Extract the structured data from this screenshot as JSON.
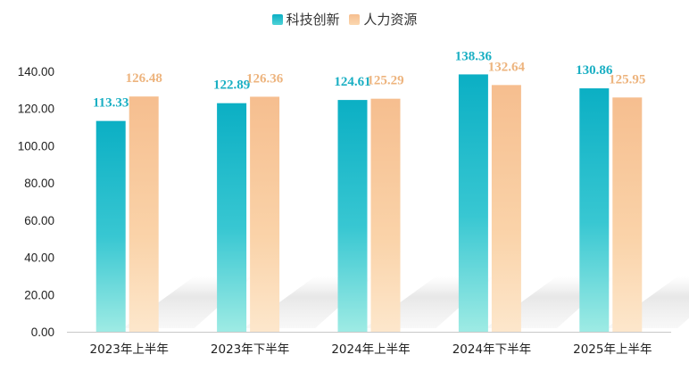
{
  "legend": [
    {
      "name": "科技创新",
      "color": "#0BAFC4"
    },
    {
      "name": "人力资源",
      "color": "#F6BE8F"
    }
  ],
  "chart_data": {
    "type": "bar",
    "categories": [
      "2023年上半年",
      "2023年下半年",
      "2024年上半年",
      "2024年下半年",
      "2025年上半年"
    ],
    "series": [
      {
        "name": "科技创新",
        "values": [
          113.33,
          122.89,
          124.61,
          138.36,
          130.86
        ],
        "color": "#0BAFC4",
        "label_color": "#1AAFC3"
      },
      {
        "name": "人力资源",
        "values": [
          126.48,
          126.36,
          125.29,
          132.64,
          125.95
        ],
        "color": "#F6BE8F",
        "label_color": "#EDB47E"
      }
    ],
    "y_ticks": [
      "0.00",
      "20.00",
      "40.00",
      "60.00",
      "80.00",
      "100.00",
      "120.00",
      "140.00"
    ],
    "ylim": [
      0,
      140
    ],
    "grid": false,
    "legend_position": "top-center",
    "title": "",
    "xlabel": "",
    "ylabel": ""
  }
}
